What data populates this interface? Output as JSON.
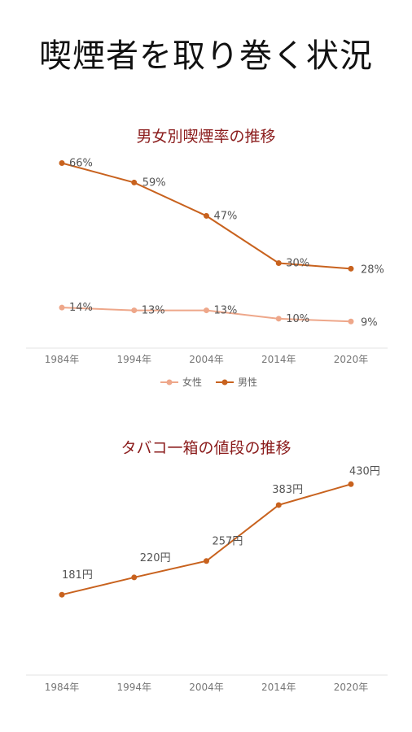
{
  "page": {
    "title": "喫煙者を取り巻く状況"
  },
  "chart_data": [
    {
      "type": "line",
      "title": "男女別喫煙率の推移",
      "categories": [
        "1984年",
        "1994年",
        "2004年",
        "2014年",
        "2020年"
      ],
      "series": [
        {
          "name": "男性",
          "values": [
            66,
            59,
            47,
            30,
            28
          ],
          "labels": [
            "66%",
            "59%",
            "47%",
            "30%",
            "28%"
          ],
          "color": "#c8621e"
        },
        {
          "name": "女性",
          "values": [
            14,
            13,
            13,
            10,
            9
          ],
          "labels": [
            "14%",
            "13%",
            "13%",
            "10%",
            "9%"
          ],
          "color": "#eea78a"
        }
      ],
      "ylim": [
        0,
        72
      ],
      "grid": false,
      "legend": "bottom",
      "legend_order": [
        "女性",
        "男性"
      ]
    },
    {
      "type": "line",
      "title": "タバコ一箱の値段の推移",
      "categories": [
        "1984年",
        "1994年",
        "2004年",
        "2014年",
        "2020年"
      ],
      "series": [
        {
          "values": [
            181,
            220,
            257,
            383,
            430
          ],
          "labels": [
            "181円",
            "220円",
            "257円",
            "383円",
            "430円"
          ],
          "color": "#c8621e"
        }
      ],
      "ylim": [
        0,
        480
      ],
      "grid": false
    }
  ]
}
